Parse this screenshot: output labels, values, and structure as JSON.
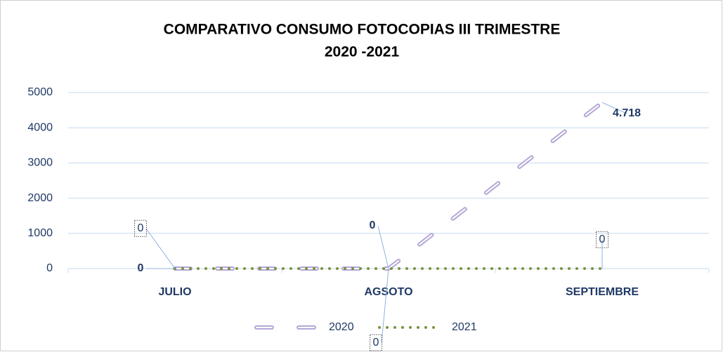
{
  "chart_data": {
    "type": "line",
    "title": "COMPARATIVO CONSUMO FOTOCOPIAS III TRIMESTRE",
    "subtitle": "2020 -2021",
    "categories": [
      "JULIO",
      "AGSOTO",
      "SEPTIEMBRE"
    ],
    "series": [
      {
        "name": "2020",
        "color": "#b4a7d6",
        "values": [
          0,
          0,
          4718
        ],
        "value_labels": [
          "0",
          "0",
          "4.718"
        ]
      },
      {
        "name": "2021",
        "color": "#77933c",
        "values": [
          0,
          0,
          0
        ]
      }
    ],
    "ylim": [
      0,
      5000
    ],
    "yticks": [
      0,
      1000,
      2000,
      3000,
      4000,
      5000
    ],
    "grid": true,
    "legend": "bottom"
  }
}
